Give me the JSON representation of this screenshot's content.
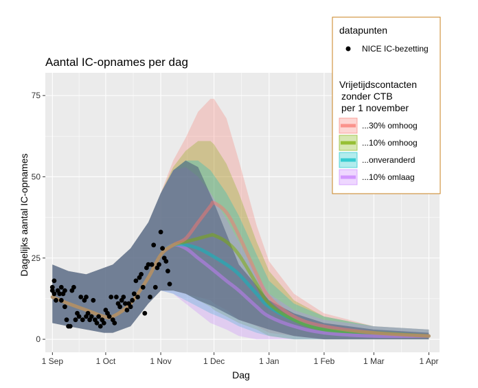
{
  "chart_data": {
    "type": "line",
    "title": "Aantal IC-opnames per dag",
    "xlabel": "Dag",
    "ylabel": "Dagelijks aantal IC-opnames",
    "x_ticks": [
      "1 Sep",
      "1 Oct",
      "1 Nov",
      "1 Dec",
      "1 Jan",
      "1 Feb",
      "1 Mar",
      "1 Apr"
    ],
    "y_ticks": [
      0,
      25,
      50,
      75
    ],
    "xlim": [
      "2021-08-28",
      "2022-04-07"
    ],
    "ylim": [
      -4,
      82
    ],
    "grid": true,
    "legend_position": "top-right",
    "colors": {
      "band": "#4a5a78",
      "points": "#000000",
      "panel": "#ebebeb",
      "grid": "#ffffff",
      "legend_border": "#c8821e"
    },
    "common_band": {
      "x": [
        "2021-09-01",
        "2021-09-10",
        "2021-09-20",
        "2021-09-30",
        "2021-10-05",
        "2021-10-15",
        "2021-10-25",
        "2021-11-01",
        "2021-11-08",
        "2021-11-15",
        "2021-11-22",
        "2021-12-01",
        "2021-12-15",
        "2022-01-01",
        "2022-01-15",
        "2022-02-01",
        "2022-03-01",
        "2022-04-01"
      ],
      "lower": [
        5,
        4,
        3,
        2,
        2,
        4,
        11,
        15,
        15,
        14,
        12,
        10,
        6,
        3,
        1,
        0,
        0,
        0
      ],
      "upper": [
        23,
        21,
        20,
        22,
        23,
        28,
        36,
        45,
        52,
        55,
        53,
        42,
        23,
        12,
        8,
        5,
        3,
        2
      ]
    },
    "series": [
      {
        "name": "...30% omhoog",
        "color": "#f8766d",
        "x": [
          "2021-09-01",
          "2021-09-10",
          "2021-09-20",
          "2021-09-30",
          "2021-10-05",
          "2021-10-15",
          "2021-10-25",
          "2021-11-01",
          "2021-11-08",
          "2021-11-15",
          "2021-11-22",
          "2021-11-29",
          "2021-12-01",
          "2021-12-08",
          "2021-12-15",
          "2021-12-25",
          "2022-01-01",
          "2022-01-15",
          "2022-02-01",
          "2022-03-01",
          "2022-04-01"
        ],
        "y": [
          13,
          11,
          9,
          7,
          7,
          11,
          19,
          26,
          29,
          31,
          36,
          41,
          42,
          39,
          32,
          20,
          13,
          7,
          4,
          2,
          1
        ],
        "lower": [
          5,
          4,
          3,
          2,
          2,
          4,
          11,
          15,
          15,
          14,
          13,
          12,
          11,
          9,
          6,
          4,
          2,
          1,
          0,
          0,
          0
        ],
        "upper": [
          23,
          21,
          20,
          22,
          23,
          28,
          36,
          45,
          55,
          62,
          70,
          74,
          74,
          68,
          55,
          35,
          24,
          14,
          8,
          4,
          3
        ]
      },
      {
        "name": "...10% omhoog",
        "color": "#7cae00",
        "x": [
          "2021-09-01",
          "2021-09-10",
          "2021-09-20",
          "2021-09-30",
          "2021-10-05",
          "2021-10-15",
          "2021-10-25",
          "2021-11-01",
          "2021-11-08",
          "2021-11-15",
          "2021-11-22",
          "2021-11-29",
          "2021-12-01",
          "2021-12-08",
          "2021-12-15",
          "2021-12-25",
          "2022-01-01",
          "2022-01-15",
          "2022-02-01",
          "2022-03-01",
          "2022-04-01"
        ],
        "y": [
          13,
          11,
          9,
          7,
          7,
          11,
          19,
          26,
          29,
          30,
          31,
          32,
          32,
          30,
          26,
          17,
          11,
          6,
          3,
          2,
          1
        ],
        "lower": [
          5,
          4,
          3,
          2,
          2,
          4,
          11,
          15,
          15,
          14,
          12,
          10,
          9,
          7,
          5,
          3,
          1,
          0,
          0,
          0,
          0
        ],
        "upper": [
          23,
          21,
          20,
          22,
          23,
          28,
          36,
          45,
          53,
          58,
          61,
          61,
          60,
          54,
          45,
          30,
          21,
          12,
          7,
          4,
          3
        ]
      },
      {
        "name": "...onveranderd",
        "color": "#00bfc4",
        "x": [
          "2021-09-01",
          "2021-09-10",
          "2021-09-20",
          "2021-09-30",
          "2021-10-05",
          "2021-10-15",
          "2021-10-25",
          "2021-11-01",
          "2021-11-08",
          "2021-11-15",
          "2021-11-22",
          "2021-11-29",
          "2021-12-08",
          "2021-12-15",
          "2021-12-25",
          "2022-01-01",
          "2022-01-15",
          "2022-02-01",
          "2022-03-01",
          "2022-04-01"
        ],
        "y": [
          13,
          11,
          9,
          7,
          7,
          11,
          19,
          26,
          29,
          29,
          28,
          26,
          23,
          20,
          14,
          10,
          6,
          3,
          2,
          1
        ],
        "lower": [
          5,
          4,
          3,
          2,
          2,
          4,
          11,
          15,
          14,
          12,
          10,
          8,
          6,
          4,
          2,
          1,
          0,
          0,
          0,
          0
        ],
        "upper": [
          23,
          21,
          20,
          22,
          23,
          28,
          36,
          45,
          52,
          55,
          55,
          52,
          45,
          38,
          26,
          18,
          11,
          7,
          4,
          3
        ]
      },
      {
        "name": "...10% omlaag",
        "color": "#c77cff",
        "x": [
          "2021-09-01",
          "2021-09-10",
          "2021-09-20",
          "2021-09-30",
          "2021-10-05",
          "2021-10-15",
          "2021-10-25",
          "2021-11-01",
          "2021-11-08",
          "2021-11-15",
          "2021-11-22",
          "2021-11-29",
          "2021-12-08",
          "2021-12-15",
          "2021-12-25",
          "2022-01-01",
          "2022-01-15",
          "2022-02-01",
          "2022-03-01",
          "2022-04-01"
        ],
        "y": [
          13,
          11,
          9,
          7,
          7,
          11,
          19,
          26,
          29,
          28,
          25,
          22,
          18,
          15,
          10,
          7,
          4,
          2,
          1,
          1
        ],
        "lower": [
          5,
          4,
          3,
          2,
          2,
          4,
          11,
          15,
          14,
          11,
          8,
          5,
          3,
          1,
          0,
          0,
          0,
          0,
          0,
          0
        ],
        "upper": [
          23,
          21,
          20,
          22,
          23,
          28,
          36,
          45,
          52,
          53,
          50,
          45,
          37,
          30,
          20,
          14,
          9,
          6,
          4,
          3
        ]
      }
    ],
    "points": {
      "name": "NICE IC-bezetting",
      "x": [
        "2021-09-01",
        "2021-09-01",
        "2021-09-02",
        "2021-09-02",
        "2021-09-03",
        "2021-09-04",
        "2021-09-05",
        "2021-09-06",
        "2021-09-06",
        "2021-09-07",
        "2021-09-08",
        "2021-09-08",
        "2021-09-09",
        "2021-09-10",
        "2021-09-11",
        "2021-09-12",
        "2021-09-13",
        "2021-09-14",
        "2021-09-15",
        "2021-09-16",
        "2021-09-17",
        "2021-09-18",
        "2021-09-19",
        "2021-09-20",
        "2021-09-20",
        "2021-09-21",
        "2021-09-22",
        "2021-09-23",
        "2021-09-24",
        "2021-09-25",
        "2021-09-26",
        "2021-09-27",
        "2021-09-28",
        "2021-09-29",
        "2021-09-30",
        "2021-10-01",
        "2021-10-02",
        "2021-10-03",
        "2021-10-04",
        "2021-10-05",
        "2021-10-06",
        "2021-10-07",
        "2021-10-08",
        "2021-10-09",
        "2021-10-10",
        "2021-10-11",
        "2021-10-12",
        "2021-10-13",
        "2021-10-14",
        "2021-10-15",
        "2021-10-16",
        "2021-10-17",
        "2021-10-18",
        "2021-10-19",
        "2021-10-20",
        "2021-10-21",
        "2021-10-22",
        "2021-10-23",
        "2021-10-24",
        "2021-10-25",
        "2021-10-26",
        "2021-10-27",
        "2021-10-28",
        "2021-10-29",
        "2021-10-30",
        "2021-10-31",
        "2021-11-01",
        "2021-11-02",
        "2021-11-03",
        "2021-11-04",
        "2021-11-05",
        "2021-11-06"
      ],
      "y": [
        15,
        16,
        18,
        14,
        12,
        15,
        14,
        12,
        16,
        14,
        15,
        10,
        6,
        4,
        4,
        15,
        16,
        6,
        8,
        7,
        13,
        6,
        12,
        7,
        13,
        8,
        6,
        7,
        12,
        6,
        5,
        7,
        4,
        6,
        5,
        9,
        8,
        7,
        13,
        6,
        5,
        13,
        11,
        10,
        12,
        13,
        11,
        9,
        11,
        10,
        12,
        14,
        18,
        13,
        19,
        20,
        16,
        8,
        22,
        23,
        13,
        23,
        29,
        16,
        22,
        23,
        33,
        28,
        25,
        24,
        21,
        17
      ]
    }
  }
}
